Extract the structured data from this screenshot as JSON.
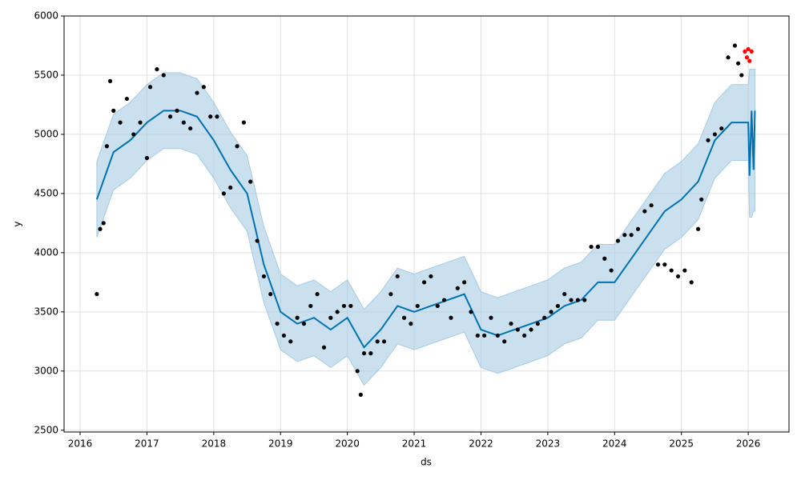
{
  "chart_data": {
    "type": "forecast",
    "x_label": "ds",
    "y_label": "y",
    "xlim": [
      2015.76,
      2026.61
    ],
    "xticks": [
      2016,
      2017,
      2018,
      2019,
      2020,
      2021,
      2022,
      2023,
      2024,
      2025,
      2026
    ],
    "ylim": [
      2485,
      6000
    ],
    "yticks": [
      2500,
      3000,
      3500,
      4000,
      4500,
      5000,
      5500,
      6000
    ],
    "grid": true,
    "forecast": {
      "color": "#0072b2",
      "band_color": "#a6cbe3",
      "x": [
        2016.25,
        2016.5,
        2016.75,
        2017,
        2017.25,
        2017.5,
        2017.75,
        2018,
        2018.25,
        2018.5,
        2018.75,
        2019,
        2019.25,
        2019.5,
        2019.75,
        2020,
        2020.25,
        2020.5,
        2020.75,
        2021,
        2021.25,
        2021.5,
        2021.75,
        2022,
        2022.25,
        2022.5,
        2022.75,
        2023,
        2023.25,
        2023.5,
        2023.75,
        2024,
        2024.25,
        2024.5,
        2024.75,
        2025,
        2025.25,
        2025.5,
        2025.75,
        2026,
        2026.02,
        2026.05,
        2026.08,
        2026.1
      ],
      "yhat": [
        4450,
        4850,
        4950,
        5100,
        5200,
        5200,
        5150,
        4950,
        4700,
        4500,
        3900,
        3500,
        3400,
        3450,
        3350,
        3450,
        3200,
        3350,
        3550,
        3500,
        3550,
        3600,
        3650,
        3350,
        3300,
        3350,
        3400,
        3450,
        3550,
        3600,
        3750,
        3750,
        3950,
        4150,
        4350,
        4450,
        4600,
        4950,
        5100,
        5100,
        4650,
        5200,
        4700,
        5200
      ],
      "yhat_lower": [
        4130,
        4530,
        4630,
        4780,
        4880,
        4880,
        4830,
        4630,
        4380,
        4180,
        3580,
        3180,
        3080,
        3130,
        3030,
        3130,
        2880,
        3030,
        3230,
        3180,
        3230,
        3280,
        3330,
        3030,
        2980,
        3030,
        3080,
        3130,
        3230,
        3280,
        3430,
        3430,
        3630,
        3830,
        4030,
        4130,
        4280,
        4630,
        4780,
        4780,
        4300,
        4300,
        4350,
        4350
      ],
      "yhat_upper": [
        4770,
        5170,
        5270,
        5420,
        5520,
        5520,
        5470,
        5270,
        5020,
        4820,
        4220,
        3820,
        3720,
        3770,
        3670,
        3770,
        3520,
        3670,
        3870,
        3820,
        3870,
        3920,
        3970,
        3670,
        3620,
        3670,
        3720,
        3770,
        3870,
        3920,
        4070,
        4070,
        4270,
        4470,
        4670,
        4770,
        4920,
        5270,
        5420,
        5420,
        5550,
        5550,
        5550,
        5550
      ]
    },
    "observed": {
      "color": "#000000",
      "x": [
        2016.25,
        2016.3,
        2016.35,
        2016.4,
        2016.45,
        2016.5,
        2016.6,
        2016.7,
        2016.8,
        2016.9,
        2017,
        2017.05,
        2017.15,
        2017.25,
        2017.35,
        2017.45,
        2017.55,
        2017.65,
        2017.75,
        2017.85,
        2017.95,
        2018.05,
        2018.15,
        2018.25,
        2018.35,
        2018.45,
        2018.55,
        2018.65,
        2018.75,
        2018.85,
        2018.95,
        2019.05,
        2019.15,
        2019.25,
        2019.35,
        2019.45,
        2019.55,
        2019.65,
        2019.75,
        2019.85,
        2019.95,
        2020.05,
        2020.15,
        2020.2,
        2020.25,
        2020.35,
        2020.45,
        2020.55,
        2020.65,
        2020.75,
        2020.85,
        2020.95,
        2021.05,
        2021.15,
        2021.25,
        2021.35,
        2021.45,
        2021.55,
        2021.65,
        2021.75,
        2021.85,
        2021.95,
        2022.05,
        2022.15,
        2022.25,
        2022.35,
        2022.45,
        2022.55,
        2022.65,
        2022.75,
        2022.85,
        2022.95,
        2023.05,
        2023.15,
        2023.25,
        2023.35,
        2023.45,
        2023.55,
        2023.65,
        2023.75,
        2023.85,
        2023.95,
        2024.05,
        2024.15,
        2024.25,
        2024.35,
        2024.45,
        2024.55,
        2024.65,
        2024.75,
        2024.85,
        2024.95,
        2025.05,
        2025.15,
        2025.25,
        2025.3,
        2025.4,
        2025.5,
        2025.6,
        2025.7,
        2025.8,
        2025.85,
        2025.9
      ],
      "values": [
        3650,
        4200,
        4250,
        4900,
        5450,
        5200,
        5100,
        5300,
        5000,
        5100,
        4800,
        5400,
        5550,
        5500,
        5150,
        5200,
        5100,
        5050,
        5350,
        5400,
        5150,
        5150,
        4500,
        4550,
        4900,
        5100,
        4600,
        4100,
        3800,
        3650,
        3400,
        3300,
        3250,
        3450,
        3400,
        3550,
        3650,
        3200,
        3450,
        3500,
        3550,
        3550,
        3000,
        2800,
        3150,
        3150,
        3250,
        3250,
        3650,
        3800,
        3450,
        3400,
        3550,
        3750,
        3800,
        3550,
        3600,
        3450,
        3700,
        3750,
        3500,
        3300,
        3300,
        3450,
        3300,
        3250,
        3400,
        3350,
        3300,
        3350,
        3400,
        3450,
        3500,
        3550,
        3650,
        3600,
        3600,
        3600,
        4050,
        4050,
        3950,
        3850,
        4100,
        4150,
        4150,
        4200,
        4350,
        4400,
        3900,
        3900,
        3850,
        3800,
        3850,
        3750,
        4200,
        4450,
        4950,
        5000,
        5050,
        5650,
        5750,
        5600,
        5500
      ]
    },
    "test": {
      "color": "#ff0000",
      "x": [
        2025.95,
        2025.98,
        2026,
        2026.02,
        2026.05
      ],
      "values": [
        5700,
        5650,
        5720,
        5620,
        5700
      ]
    }
  }
}
